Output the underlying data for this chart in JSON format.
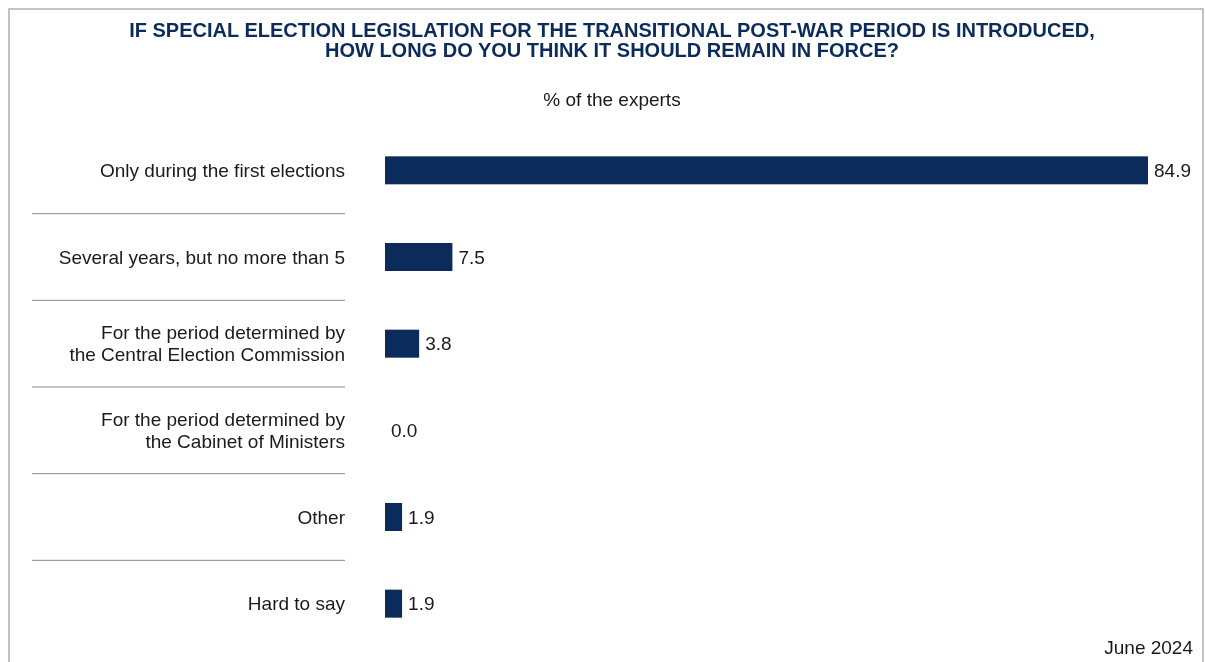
{
  "chart_data": {
    "type": "bar",
    "orientation": "horizontal",
    "title": "IF SPECIAL ELECTION LEGISLATION FOR THE TRANSITIONAL POST-WAR PERIOD IS INTRODUCED,\nHOW LONG DO YOU THINK IT SHOULD REMAIN IN FORCE?",
    "subtitle": "% of the experts",
    "categories": [
      "Only during the first elections",
      "Several years, but no more than 5",
      "For the period determined by\nthe Central Election Commission",
      "For the period determined by\nthe Cabinet of Ministers",
      "Other",
      "Hard to say"
    ],
    "values": [
      84.9,
      7.5,
      3.8,
      0.0,
      1.9,
      1.9
    ],
    "color": "#0b2c5a",
    "value_labels": [
      "84.9",
      "7.5",
      "3.8",
      "0.0",
      "1.9",
      "1.9"
    ],
    "annotations": [
      "June 2024"
    ]
  }
}
